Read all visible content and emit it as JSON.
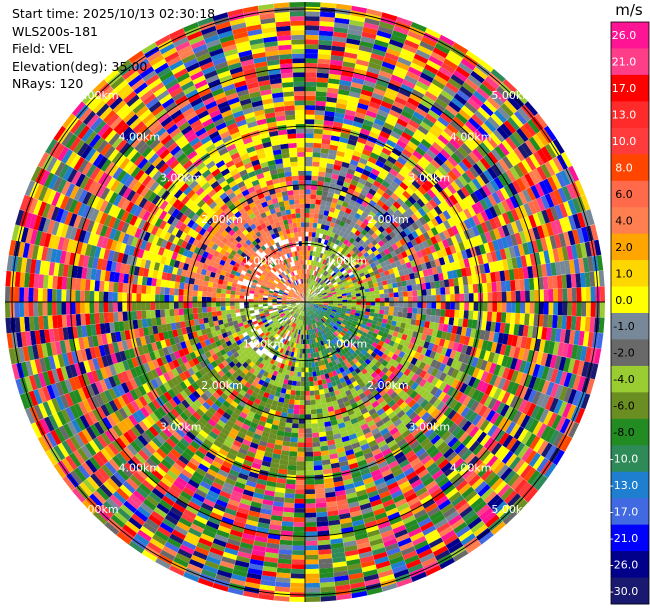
{
  "info": {
    "start_time": "Start time: 2025/10/13 02:30:18",
    "instrument": "WLS200s-181",
    "field": "Field: VEL",
    "elevation": "Elevation(deg): 35.00",
    "nrays": "NRays: 120"
  },
  "chart_data": {
    "type": "heatmap",
    "projection": "polar-ppi",
    "field": "VEL",
    "n_rays": 120,
    "range_rings_km": [
      "1.00km",
      "2.00km",
      "3.00km",
      "4.00km",
      "5.00km"
    ],
    "ring_label_directions_deg": [
      45,
      135,
      225,
      315
    ],
    "colorbar": {
      "unit": "m/s",
      "ticks": [
        "26.0",
        "21.0",
        "17.0",
        "13.0",
        "10.0",
        "8.0",
        "6.0",
        "4.0",
        "2.0",
        "1.0",
        "0.0",
        "-1.0",
        "-2.0",
        "-4.0",
        "-6.0",
        "-8.0",
        "-10.0",
        "-13.0",
        "-17.0",
        "-21.0",
        "-26.0",
        "-30.0"
      ],
      "colors": [
        "#ff1493",
        "#ff3e8a",
        "#ff0000",
        "#ff2a2a",
        "#ff3b3b",
        "#ff4500",
        "#ff6a4a",
        "#ff7f50",
        "#ffa500",
        "#ffd700",
        "#ffff00",
        "#778899",
        "#696969",
        "#9acd32",
        "#6b8e23",
        "#228b22",
        "#2e8b57",
        "#1e7fd0",
        "#4169e1",
        "#0000ff",
        "#00008b",
        "#191970"
      ]
    }
  }
}
